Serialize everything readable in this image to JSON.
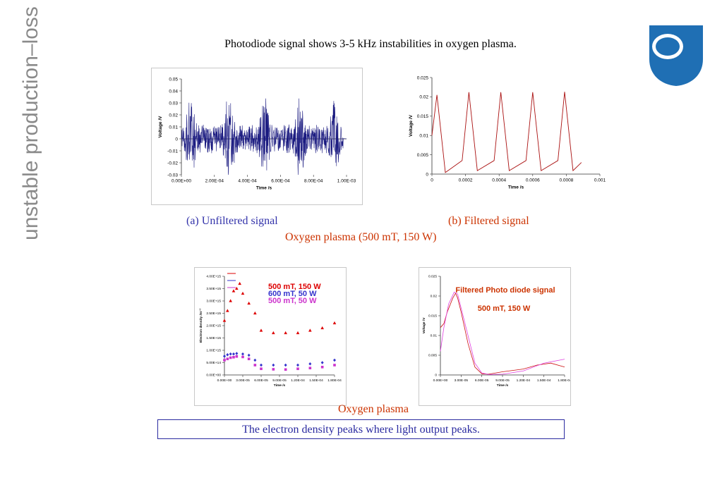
{
  "slide": {
    "side_title": "unstable production–loss",
    "heading": "Photodiode signal shows 3-5 kHz instabilities in oxygen plasma.",
    "caption_a": "(a) Unfiltered signal",
    "caption_b": "(b) Filtered signal",
    "subtitle_top": "Oxygen plasma  (500 mT, 150 W)",
    "subtitle_bottom": "Oxygen plasma",
    "conclusion": "The electron density peaks where light output peaks.",
    "colors": {
      "side_title": "#8a8a8a",
      "blue_text": "#3333aa",
      "red_text": "#cc3300",
      "logo": "#1f6fb4"
    },
    "logo_icon": "shield-logo-icon"
  },
  "chart_data": [
    {
      "id": "unfiltered",
      "type": "line",
      "xlabel": "Time /s",
      "ylabel": "Voltage /V",
      "xlim": [
        0,
        0.001
      ],
      "ylim": [
        -0.03,
        0.05
      ],
      "x_ticks": [
        "0.00E+00",
        "2.00E-04",
        "4.00E-04",
        "6.00E-04",
        "8.00E-04",
        "1.00E-03"
      ],
      "y_ticks": [
        "0.05",
        "0.04",
        "0.03",
        "0.02",
        "0.01",
        "0",
        "-0.01",
        "-0.02",
        "-0.03"
      ],
      "series": [
        {
          "color": "#1a1a80",
          "noise_envelope": {
            "signal_end": 0.00098,
            "burst_centers": [
              6e-05,
              0.00029,
              0.00051,
              0.00072,
              0.00093
            ],
            "peak_amplitude": [
              0.035,
              0.038,
              0.038,
              0.036,
              0.035
            ],
            "base_amplitude": 0.012
          }
        }
      ]
    },
    {
      "id": "filtered",
      "type": "line",
      "xlabel": "Time /s",
      "ylabel": "Voltage /V",
      "xlim": [
        0,
        0.001
      ],
      "ylim": [
        0,
        0.025
      ],
      "x_ticks": [
        "0",
        "0.0002",
        "0.0004",
        "0.0006",
        "0.0008",
        "0.001"
      ],
      "y_ticks": [
        "0.025",
        "0.02",
        "0.015",
        "0.01",
        "0.005",
        "0"
      ],
      "series": [
        {
          "color": "#aa1111",
          "x": [
            0,
            3e-05,
            5e-05,
            7e-05,
            0.0001,
            0.00015,
            0.0002,
            0.00022,
            0.00025,
            0.0002,
            0.00022
          ],
          "peaks": [
            3e-05,
            0.00022,
            0.00041,
            0.0006,
            0.00079
          ],
          "peak_values": [
            0.0205,
            0.0212,
            0.0212,
            0.0212,
            0.0213
          ],
          "trough_values": [
            0.0,
            0.0005,
            0.0005,
            0.0005,
            0.0005
          ],
          "end_value": 0.003,
          "end_x": 0.00089
        }
      ]
    },
    {
      "id": "electron-density",
      "type": "scatter",
      "xlabel": "Time /s",
      "ylabel": "Electron density /m⁻³",
      "xlim": [
        0,
        0.00018
      ],
      "ylim": [
        0,
        4000000000000000.0
      ],
      "x_ticks": [
        "0.00E+00",
        "3.00E-05",
        "6.00E-05",
        "9.00E-05",
        "1.20E-04",
        "1.50E-04",
        "1.80E-04"
      ],
      "y_ticks": [
        "4.00E+15",
        "3.50E+15",
        "3.00E+15",
        "2.50E+15",
        "2.00E+15",
        "1.50E+15",
        "1.00E+15",
        "5.00E+14",
        "0.00E+00"
      ],
      "legend": [
        "500  mT,  150 W",
        "600 mT, 50 W",
        "500 mT, 50 W"
      ],
      "series": [
        {
          "name": "500  mT,  150 W",
          "color": "#dd0000",
          "marker": "triangle",
          "x": [
            0,
            5e-06,
            1e-05,
            1.5e-05,
            2e-05,
            2.5e-05,
            3e-05,
            4e-05,
            5e-05,
            6e-05,
            8e-05,
            0.0001,
            0.00012,
            0.00014,
            0.00016,
            0.00018
          ],
          "y": [
            2200000000000000.0,
            2600000000000000.0,
            3000000000000000.0,
            3400000000000000.0,
            3500000000000000.0,
            3700000000000000.0,
            3300000000000000.0,
            2900000000000000.0,
            2500000000000000.0,
            1800000000000000.0,
            1700000000000000.0,
            1700000000000000.0,
            1700000000000000.0,
            1800000000000000.0,
            1900000000000000.0,
            2100000000000000.0
          ]
        },
        {
          "name": "600 mT, 50 W",
          "color": "#3333cc",
          "marker": "diamond",
          "x": [
            0,
            5e-06,
            1e-05,
            1.5e-05,
            2e-05,
            3e-05,
            4e-05,
            5e-05,
            6e-05,
            8e-05,
            0.0001,
            0.00012,
            0.00014,
            0.00016,
            0.00018
          ],
          "y": [
            760000000000000.0,
            820000000000000.0,
            850000000000000.0,
            850000000000000.0,
            870000000000000.0,
            850000000000000.0,
            800000000000000.0,
            600000000000000.0,
            400000000000000.0,
            400000000000000.0,
            400000000000000.0,
            400000000000000.0,
            450000000000000.0,
            500000000000000.0,
            600000000000000.0
          ]
        },
        {
          "name": "500 mT, 50 W",
          "color": "#cc33cc",
          "marker": "square",
          "x": [
            0,
            5e-06,
            1e-05,
            1.5e-05,
            2e-05,
            3e-05,
            4e-05,
            5e-05,
            6e-05,
            8e-05,
            0.0001,
            0.00012,
            0.00014,
            0.00016,
            0.00018
          ],
          "y": [
            600000000000000.0,
            650000000000000.0,
            700000000000000.0,
            720000000000000.0,
            750000000000000.0,
            730000000000000.0,
            650000000000000.0,
            400000000000000.0,
            250000000000000.0,
            230000000000000.0,
            220000000000000.0,
            250000000000000.0,
            280000000000000.0,
            320000000000000.0,
            400000000000000.0
          ]
        }
      ]
    },
    {
      "id": "filtered-photodiode",
      "type": "line",
      "xlabel": "Time /s",
      "ylabel": "Voltage /V",
      "title": "Filtered Photo diode signal",
      "subtitle": "500 mT, 150 W",
      "xlim": [
        0,
        0.00018
      ],
      "ylim": [
        0,
        0.025
      ],
      "x_ticks": [
        "0.00E+00",
        "3.00E-05",
        "6.00E-05",
        "9.00E-05",
        "1.20E-04",
        "1.50E-04",
        "1.80E-04"
      ],
      "y_ticks": [
        "0.025",
        "0.02",
        "0.015",
        "0.01",
        "0.005",
        "0"
      ],
      "series": [
        {
          "color": "#cc1111",
          "x": [
            0,
            5e-06,
            1e-05,
            1.8e-05,
            2.2e-05,
            2.5e-05,
            3e-05,
            4e-05,
            5e-05,
            6e-05,
            7e-05,
            9e-05,
            0.00012,
            0.00014,
            0.00016,
            0.00018
          ],
          "y": [
            0.012,
            0.013,
            0.016,
            0.0195,
            0.0207,
            0.0195,
            0.016,
            0.008,
            0.002,
            0.0003,
            0.0002,
            0.0008,
            0.0015,
            0.0025,
            0.003,
            0.002
          ]
        },
        {
          "color": "#e040e0",
          "x": [
            0,
            5e-06,
            1.2e-05,
            2e-05,
            2.5e-05,
            3e-05,
            4e-05,
            5e-05,
            6e-05,
            7e-05,
            9e-05,
            0.00012,
            0.00015,
            0.00018
          ],
          "y": [
            0.006,
            0.012,
            0.018,
            0.021,
            0.0205,
            0.017,
            0.01,
            0.003,
            0.0005,
            0.0001,
            0.0002,
            0.001,
            0.003,
            0.004
          ]
        }
      ]
    }
  ]
}
